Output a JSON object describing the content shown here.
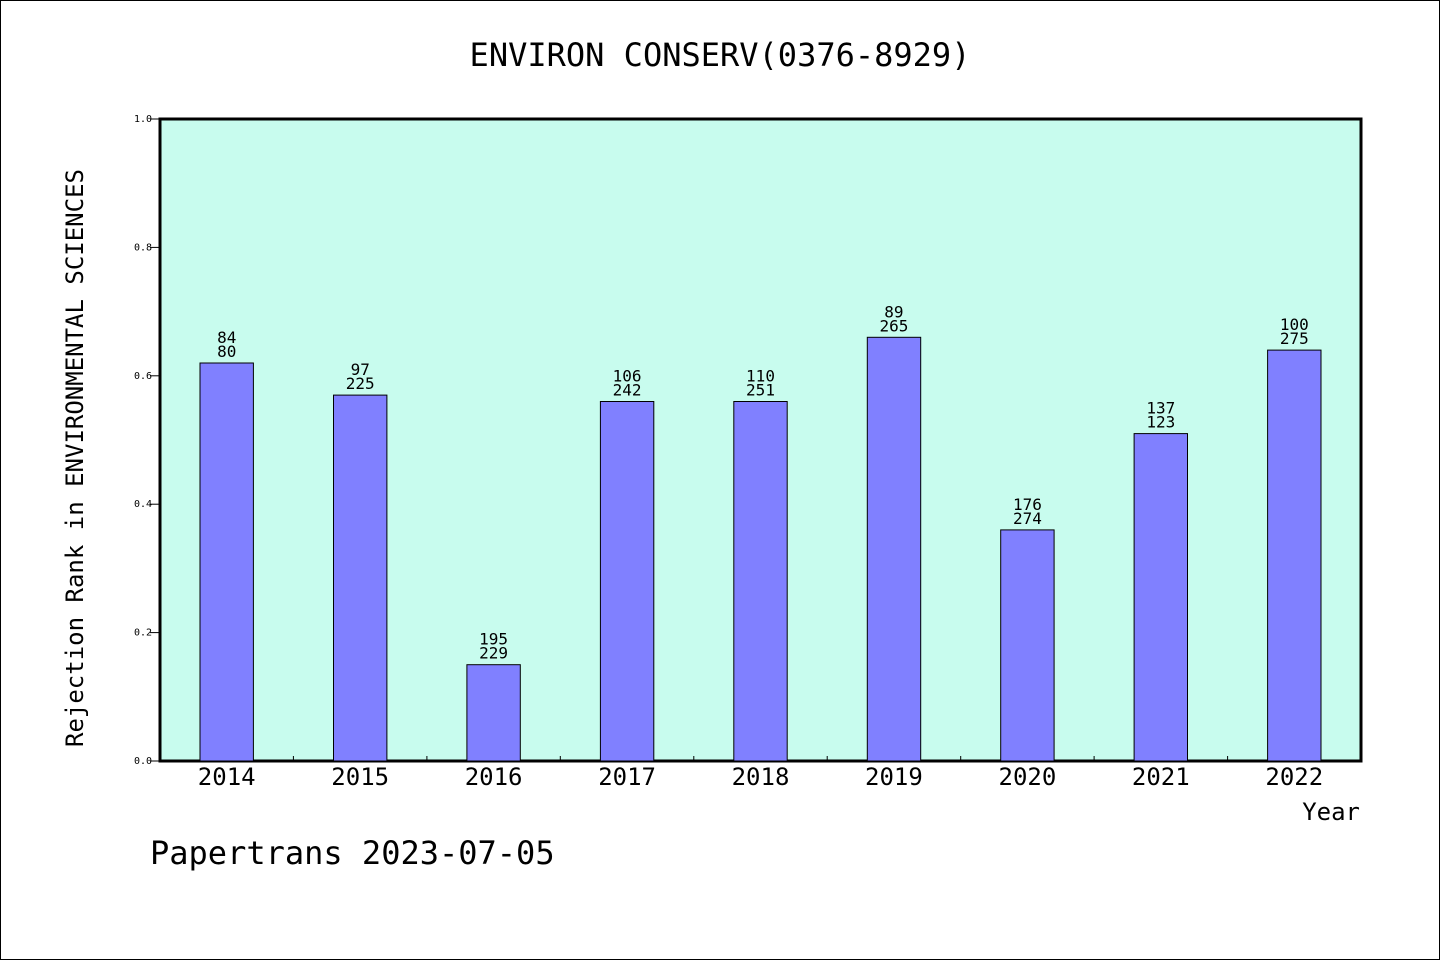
{
  "chart_data": {
    "type": "bar",
    "title": "ENVIRON CONSERV(0376-8929)",
    "xlabel": "Year",
    "ylabel": "Rejection Rank in ENVIRONMENTAL SCIENCES",
    "ylim": [
      0,
      1.0
    ],
    "yticks": [
      "0.0",
      "0.2",
      "0.4",
      "0.6",
      "0.8",
      "1.0"
    ],
    "categories": [
      "2014",
      "2015",
      "2016",
      "2017",
      "2018",
      "2019",
      "2020",
      "2021",
      "2022"
    ],
    "values": [
      0.62,
      0.57,
      0.15,
      0.56,
      0.56,
      0.66,
      0.36,
      0.51,
      0.64
    ],
    "bar_labels_top": [
      "84",
      "97",
      "195",
      "106",
      "110",
      "89",
      "176",
      "137",
      "100"
    ],
    "bar_labels_bottom": [
      "80",
      "225",
      "229",
      "242",
      "251",
      "265",
      "274",
      "123",
      "275"
    ],
    "grid": false,
    "colors": {
      "plot_background": "#c8fcee",
      "bar_fill": "#8080ff",
      "bar_stroke": "#000000"
    }
  },
  "footer": {
    "text": "Papertrans 2023-07-05"
  }
}
